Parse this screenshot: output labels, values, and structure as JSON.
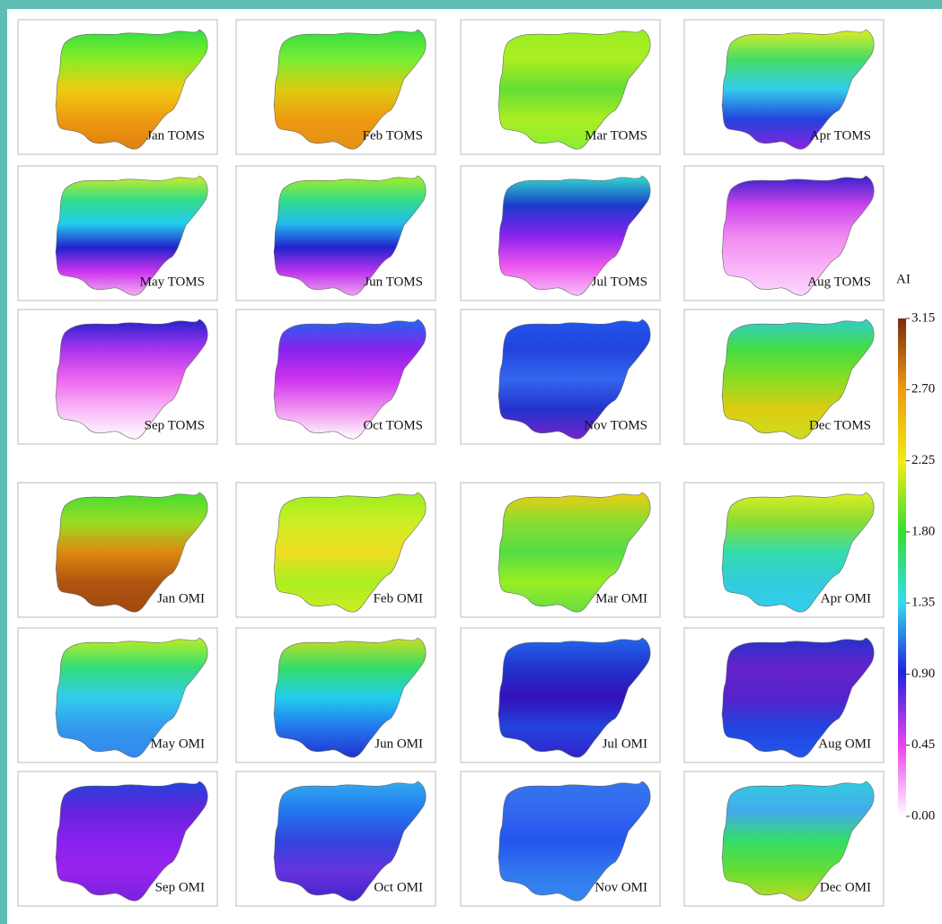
{
  "panels": [
    "Jan TOMS",
    "Feb TOMS",
    "Mar TOMS",
    "Apr TOMS",
    "May TOMS",
    "Jun TOMS",
    "Jul TOMS",
    "Aug TOMS",
    "Sep TOMS",
    "Oct TOMS",
    "Nov TOMS",
    "Dec TOMS",
    "Jan OMI",
    "Feb OMI",
    "Mar OMI",
    "Apr OMI",
    "May OMI",
    "Jun OMI",
    "Jul OMI",
    "Aug OMI",
    "Sep OMI",
    "Oct OMI",
    "Nov OMI",
    "Dec OMI"
  ],
  "colorbar": {
    "title": "AI",
    "lim": [
      0,
      3.15
    ],
    "ticks": [
      3.15,
      {
        "value": 2.7,
        "label": "2.70"
      },
      2.25,
      {
        "value": 1.8,
        "label": "1.80"
      },
      1.35,
      {
        "value": 0.9,
        "label": "0.90"
      },
      0.45,
      {
        "value": 0,
        "label": "0.00"
      }
    ]
  }
}
